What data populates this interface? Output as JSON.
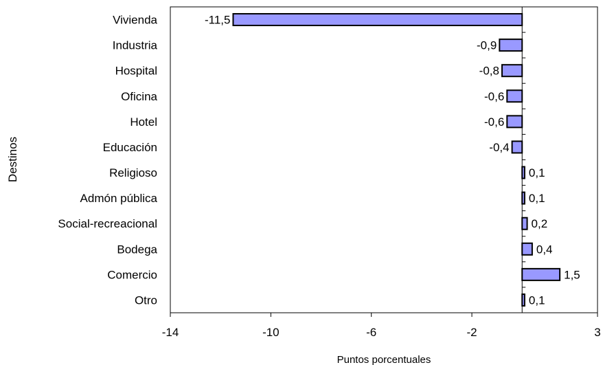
{
  "chart_data": {
    "type": "bar",
    "orientation": "horizontal",
    "categories": [
      "Vivienda",
      "Industria",
      "Hospital",
      "Oficina",
      "Hotel",
      "Educación",
      "Religioso",
      "Admón pública",
      "Social-recreacional",
      "Bodega",
      "Comercio",
      "Otro"
    ],
    "values": [
      -11.5,
      -0.9,
      -0.8,
      -0.6,
      -0.6,
      -0.4,
      0.1,
      0.1,
      0.2,
      0.4,
      1.5,
      0.1
    ],
    "data_labels": [
      "-11,5",
      "-0,9",
      "-0,8",
      "-0,6",
      "-0,6",
      "-0,4",
      "0,1",
      "0,1",
      "0,2",
      "0,4",
      "1,5",
      "0,1"
    ],
    "xlabel": "Puntos porcentuales",
    "ylabel": "Destinos",
    "xlim": [
      -14,
      3
    ],
    "xticks": [
      -14,
      -10,
      -6,
      -2,
      3
    ],
    "xtick_labels": [
      "-14",
      "-10",
      "-6",
      "-2",
      "3"
    ],
    "grid": false,
    "legend": "none",
    "bar_color": "#9999ff"
  }
}
